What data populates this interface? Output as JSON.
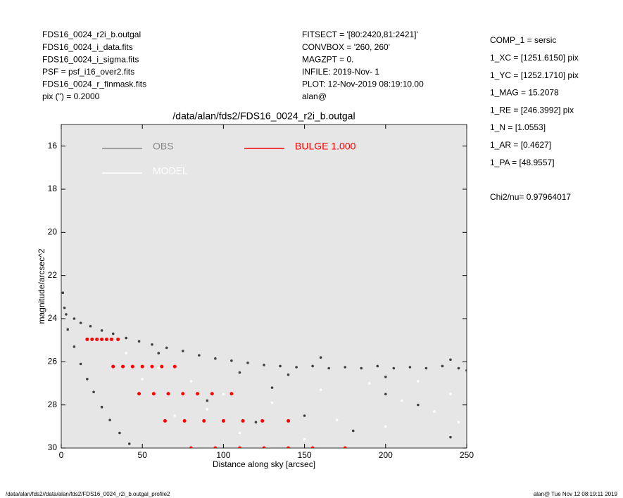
{
  "header": {
    "left": [
      "FDS16_0024_r2i_b.outgal",
      "FDS16_0024_i_data.fits",
      "FDS16_0024_i_sigma.fits",
      "PSF     = psf_i16_over2.fits",
      "FDS16_0024_r_finmask.fits",
      "pix (\") =  0.2000"
    ],
    "middle": [
      "FITSECT = '[80:2420,81:2421]'",
      "CONVBOX = '260, 260'",
      "MAGZPT =                 0.",
      "INFILE: 2019-Nov- 1",
      "PLOT: 12-Nov-2019 08:19:10.00",
      "alan@"
    ],
    "right": [
      "COMP_1  = sersic",
      "1_XC    = [1251.6150] pix",
      "1_YC    = [1252.1710] pix",
      "1_MAG   = 15.2078",
      "1_RE    = [246.3992] pix",
      "1_N     = [1.0553]",
      "1_AR    = [0.4627]",
      "1_PA    = [48.9557]"
    ],
    "chi2": "Chi2/nu=     0.97964017"
  },
  "footer": {
    "left": "/data/alan/fds2//data/alan/fds2/FDS16_0024_r2i_b.outgal_profile2",
    "right": "alan@  Tue Nov 12 08:19:11 2019"
  },
  "chart_data": {
    "type": "scatter",
    "title": "/data/alan/fds2/FDS16_0024_r2i_b.outgal",
    "x_label": "Distance along sky [arcsec]",
    "y_label": "magnitude/arcsec^2",
    "xlim": [
      0,
      250
    ],
    "xticks": [
      0,
      50,
      100,
      150,
      200,
      250
    ],
    "ylim": [
      15,
      30
    ],
    "yticks": [
      16,
      18,
      20,
      22,
      24,
      26,
      28,
      30
    ],
    "y_inverted": true,
    "background": "#e6e6e6",
    "series": [
      {
        "name": "OBS",
        "color": "#888888",
        "marker_color": "#404040",
        "x": [
          1,
          2,
          3,
          8,
          12,
          18,
          25,
          32,
          40,
          48,
          56,
          65,
          75,
          85,
          95,
          105,
          115,
          125,
          135,
          145,
          155,
          165,
          175,
          185,
          195,
          205,
          215,
          225,
          235,
          245,
          250,
          60,
          110,
          160,
          200,
          240,
          140,
          4,
          8,
          12,
          16,
          20,
          25,
          30,
          36,
          42,
          150,
          180,
          220,
          240,
          200,
          120,
          130,
          90
        ],
        "values": [
          22.8,
          23.5,
          23.8,
          24.0,
          24.2,
          24.35,
          24.55,
          24.7,
          24.9,
          25.05,
          25.2,
          25.35,
          25.5,
          25.7,
          25.85,
          25.95,
          26.05,
          26.15,
          26.2,
          26.25,
          26.2,
          26.3,
          26.25,
          26.3,
          26.2,
          26.3,
          26.25,
          26.3,
          26.2,
          26.3,
          26.4,
          25.6,
          26.5,
          25.8,
          26.7,
          25.9,
          26.6,
          24.5,
          25.3,
          26.1,
          26.8,
          27.4,
          28.1,
          28.7,
          29.3,
          29.8,
          28.5,
          29.2,
          28.0,
          29.5,
          27.5,
          28.8,
          27.2,
          27.8
        ]
      },
      {
        "name": "MODEL",
        "color": "#ffffff",
        "marker_color": "#ffffff",
        "x": [
          20,
          40,
          60,
          80,
          100,
          130,
          160,
          190,
          220,
          240,
          70,
          110,
          150,
          200,
          230,
          50,
          90,
          170,
          210,
          245
        ],
        "values": [
          25.0,
          25.6,
          26.3,
          26.9,
          27.5,
          27.9,
          27.3,
          27.0,
          26.9,
          27.5,
          28.5,
          29.3,
          29.6,
          29.0,
          28.3,
          26.8,
          28.2,
          28.7,
          27.8,
          28.8
        ]
      },
      {
        "name": "BULGE  1.000",
        "color": "#ff0000",
        "marker_color": "#ff0000",
        "x": [
          16,
          32,
          48,
          64,
          80,
          19,
          38,
          57,
          76,
          95,
          22,
          44,
          66,
          88,
          110,
          25,
          50,
          75,
          100,
          125,
          28,
          56,
          84,
          112,
          140,
          31,
          62,
          93,
          124,
          155,
          35,
          70,
          105,
          140,
          175
        ],
        "values": [
          24.96,
          26.22,
          27.48,
          28.74,
          30,
          24.96,
          26.22,
          27.48,
          28.74,
          30,
          24.96,
          26.22,
          27.48,
          28.74,
          30,
          24.96,
          26.22,
          27.48,
          28.74,
          30,
          24.96,
          26.22,
          27.48,
          28.74,
          30,
          24.96,
          26.22,
          27.48,
          28.74,
          30,
          24.96,
          26.22,
          27.48,
          28.74,
          30
        ]
      }
    ]
  }
}
